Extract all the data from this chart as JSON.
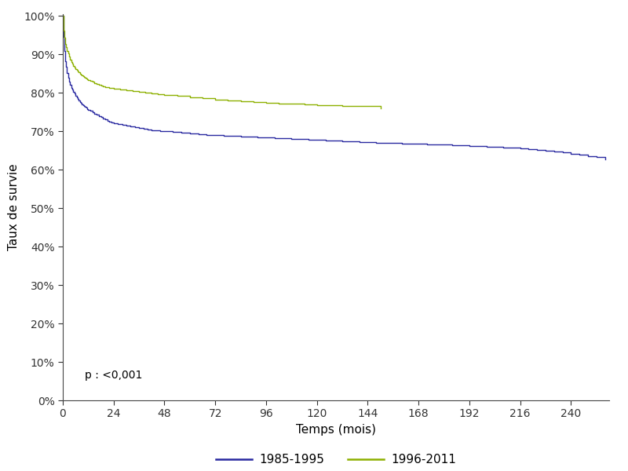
{
  "xlabel": "Temps (mois)",
  "ylabel": "Taux de survie",
  "xlim": [
    0,
    258
  ],
  "ylim": [
    0,
    1.005
  ],
  "xticks": [
    0,
    24,
    48,
    72,
    96,
    120,
    144,
    168,
    192,
    216,
    240
  ],
  "yticks": [
    0.0,
    0.1,
    0.2,
    0.3,
    0.4,
    0.5,
    0.6,
    0.7,
    0.8,
    0.9,
    1.0
  ],
  "color_1985": "#2929A0",
  "color_1996": "#8DB000",
  "annotation": "p : <0,001",
  "legend_labels": [
    "1985-1995",
    "1996-2011"
  ],
  "curve_1985_x": [
    0,
    0.2,
    0.4,
    0.6,
    0.8,
    1,
    1.2,
    1.5,
    2,
    2.5,
    3,
    3.5,
    4,
    4.5,
    5,
    5.5,
    6,
    6.5,
    7,
    7.5,
    8,
    8.5,
    9,
    9.5,
    10,
    10.5,
    11,
    11.5,
    12,
    13,
    14,
    15,
    16,
    17,
    18,
    19,
    20,
    21,
    22,
    23,
    24,
    26,
    28,
    30,
    32,
    34,
    36,
    38,
    40,
    42,
    44,
    46,
    48,
    52,
    56,
    60,
    64,
    68,
    72,
    76,
    80,
    84,
    88,
    92,
    96,
    100,
    104,
    108,
    112,
    116,
    120,
    124,
    128,
    132,
    136,
    140,
    144,
    148,
    152,
    156,
    160,
    164,
    168,
    172,
    176,
    180,
    184,
    188,
    192,
    196,
    200,
    204,
    208,
    212,
    216,
    220,
    224,
    228,
    232,
    236,
    240,
    244,
    248,
    252,
    256
  ],
  "curve_1985_y": [
    1.0,
    0.97,
    0.945,
    0.925,
    0.91,
    0.895,
    0.882,
    0.868,
    0.852,
    0.84,
    0.83,
    0.822,
    0.814,
    0.808,
    0.803,
    0.798,
    0.793,
    0.788,
    0.784,
    0.78,
    0.777,
    0.774,
    0.771,
    0.768,
    0.766,
    0.763,
    0.761,
    0.758,
    0.756,
    0.753,
    0.749,
    0.746,
    0.743,
    0.74,
    0.737,
    0.734,
    0.731,
    0.728,
    0.726,
    0.724,
    0.722,
    0.719,
    0.716,
    0.714,
    0.712,
    0.71,
    0.708,
    0.706,
    0.705,
    0.703,
    0.702,
    0.701,
    0.7,
    0.698,
    0.696,
    0.694,
    0.692,
    0.691,
    0.69,
    0.689,
    0.688,
    0.687,
    0.686,
    0.685,
    0.684,
    0.683,
    0.682,
    0.681,
    0.68,
    0.679,
    0.678,
    0.677,
    0.676,
    0.675,
    0.674,
    0.673,
    0.672,
    0.671,
    0.67,
    0.669,
    0.668,
    0.667,
    0.667,
    0.666,
    0.665,
    0.665,
    0.664,
    0.663,
    0.662,
    0.661,
    0.66,
    0.659,
    0.658,
    0.657,
    0.656,
    0.654,
    0.652,
    0.65,
    0.648,
    0.645,
    0.642,
    0.639,
    0.636,
    0.633,
    0.628
  ],
  "curve_1996_x": [
    0,
    0.2,
    0.4,
    0.6,
    0.8,
    1,
    1.2,
    1.5,
    2,
    2.5,
    3,
    3.5,
    4,
    4.5,
    5,
    5.5,
    6,
    6.5,
    7,
    7.5,
    8,
    8.5,
    9,
    9.5,
    10,
    10.5,
    11,
    11.5,
    12,
    13,
    14,
    15,
    16,
    17,
    18,
    19,
    20,
    21,
    22,
    23,
    24,
    27,
    30,
    33,
    36,
    39,
    42,
    45,
    48,
    54,
    60,
    66,
    72,
    78,
    84,
    90,
    96,
    102,
    108,
    114,
    120,
    126,
    132,
    138,
    144,
    150
  ],
  "curve_1996_y": [
    1.0,
    0.975,
    0.962,
    0.952,
    0.944,
    0.936,
    0.928,
    0.92,
    0.91,
    0.902,
    0.894,
    0.887,
    0.881,
    0.876,
    0.871,
    0.867,
    0.863,
    0.859,
    0.856,
    0.853,
    0.85,
    0.848,
    0.845,
    0.843,
    0.841,
    0.839,
    0.838,
    0.836,
    0.834,
    0.831,
    0.829,
    0.826,
    0.824,
    0.822,
    0.82,
    0.818,
    0.816,
    0.815,
    0.813,
    0.812,
    0.811,
    0.808,
    0.806,
    0.804,
    0.802,
    0.8,
    0.798,
    0.797,
    0.795,
    0.792,
    0.789,
    0.786,
    0.783,
    0.781,
    0.779,
    0.777,
    0.775,
    0.773,
    0.772,
    0.77,
    0.769,
    0.768,
    0.767,
    0.766,
    0.765,
    0.76
  ]
}
